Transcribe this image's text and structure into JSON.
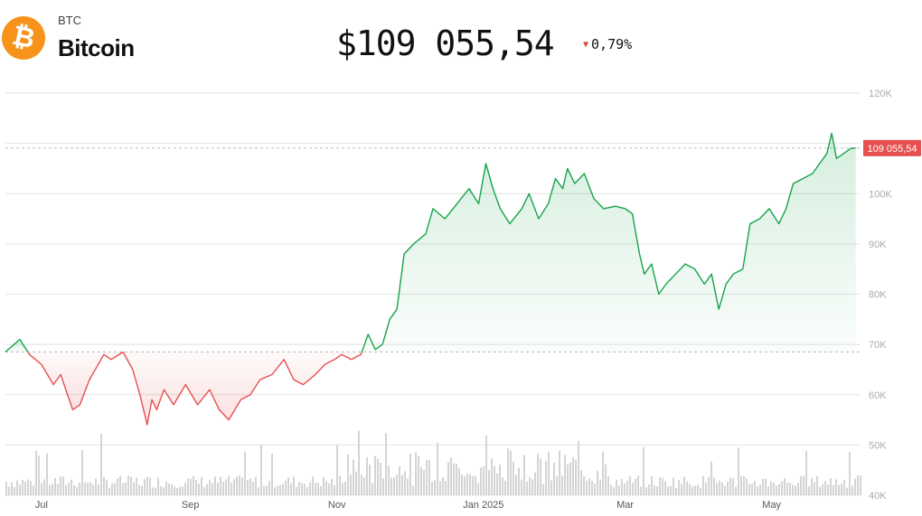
{
  "header": {
    "ticker": "BTC",
    "name": "Bitcoin",
    "price": "$109 055,54",
    "change": "0,79%",
    "change_direction": "down",
    "logo_color": "#f7931a",
    "logo_icon": "bitcoin-icon"
  },
  "chart_data": {
    "type": "area",
    "y_ticks": [
      "120K",
      "110K",
      "100K",
      "90K",
      "80K",
      "70K",
      "60K",
      "50K",
      "40K"
    ],
    "y_tick_values": [
      120000,
      110000,
      100000,
      90000,
      80000,
      70000,
      60000,
      50000,
      40000
    ],
    "ylim": [
      40000,
      120000
    ],
    "x_ticks": [
      "Jul",
      "Sep",
      "Nov",
      "Jan 2025",
      "Mar",
      "May"
    ],
    "x_tick_days": [
      15,
      77,
      138,
      199,
      258,
      319
    ],
    "xlim_days": [
      0,
      356
    ],
    "baseline": 68500,
    "current_price_label": "109 055,54",
    "current_price": 109055.54,
    "colors": {
      "up": "#16a34a",
      "down": "#e55050",
      "tag": "#e55050"
    },
    "price_points": [
      [
        0,
        68500
      ],
      [
        6,
        71000
      ],
      [
        10,
        68000
      ],
      [
        15,
        66000
      ],
      [
        20,
        62000
      ],
      [
        23,
        64000
      ],
      [
        28,
        57000
      ],
      [
        31,
        58000
      ],
      [
        35,
        63000
      ],
      [
        41,
        68000
      ],
      [
        44,
        67000
      ],
      [
        49,
        68500
      ],
      [
        53,
        65000
      ],
      [
        56,
        60000
      ],
      [
        59,
        54000
      ],
      [
        61,
        59000
      ],
      [
        63,
        57000
      ],
      [
        66,
        61000
      ],
      [
        70,
        58000
      ],
      [
        75,
        62000
      ],
      [
        80,
        58000
      ],
      [
        85,
        61000
      ],
      [
        89,
        57000
      ],
      [
        93,
        55000
      ],
      [
        98,
        59000
      ],
      [
        102,
        60000
      ],
      [
        106,
        63000
      ],
      [
        111,
        64000
      ],
      [
        116,
        67000
      ],
      [
        120,
        63000
      ],
      [
        124,
        62000
      ],
      [
        129,
        64000
      ],
      [
        133,
        66000
      ],
      [
        137,
        67000
      ],
      [
        140,
        68000
      ],
      [
        144,
        67000
      ],
      [
        148,
        68000
      ],
      [
        151,
        72000
      ],
      [
        154,
        69000
      ],
      [
        157,
        70000
      ],
      [
        160,
        75000
      ],
      [
        163,
        77000
      ],
      [
        166,
        88000
      ],
      [
        170,
        90000
      ],
      [
        175,
        92000
      ],
      [
        178,
        97000
      ],
      [
        183,
        95000
      ],
      [
        188,
        98000
      ],
      [
        193,
        101000
      ],
      [
        197,
        98000
      ],
      [
        200,
        106000
      ],
      [
        203,
        101000
      ],
      [
        206,
        97000
      ],
      [
        210,
        94000
      ],
      [
        215,
        97000
      ],
      [
        218,
        100000
      ],
      [
        222,
        95000
      ],
      [
        226,
        98000
      ],
      [
        229,
        103000
      ],
      [
        232,
        101000
      ],
      [
        234,
        105000
      ],
      [
        237,
        102000
      ],
      [
        241,
        104000
      ],
      [
        245,
        99000
      ],
      [
        249,
        97000
      ],
      [
        254,
        97500
      ],
      [
        258,
        97000
      ],
      [
        261,
        96000
      ],
      [
        264,
        88000
      ],
      [
        266,
        84000
      ],
      [
        269,
        86000
      ],
      [
        272,
        80000
      ],
      [
        275,
        82000
      ],
      [
        279,
        84000
      ],
      [
        283,
        86000
      ],
      [
        287,
        85000
      ],
      [
        291,
        82000
      ],
      [
        294,
        84000
      ],
      [
        297,
        77000
      ],
      [
        300,
        82000
      ],
      [
        303,
        84000
      ],
      [
        307,
        85000
      ],
      [
        310,
        94000
      ],
      [
        314,
        95000
      ],
      [
        318,
        97000
      ],
      [
        322,
        94000
      ],
      [
        325,
        97000
      ],
      [
        328,
        102000
      ],
      [
        332,
        103000
      ],
      [
        336,
        104000
      ],
      [
        339,
        106000
      ],
      [
        342,
        108000
      ],
      [
        344,
        112000
      ],
      [
        346,
        107000
      ],
      [
        349,
        108000
      ],
      [
        352,
        109000
      ],
      [
        354,
        109055
      ]
    ]
  }
}
